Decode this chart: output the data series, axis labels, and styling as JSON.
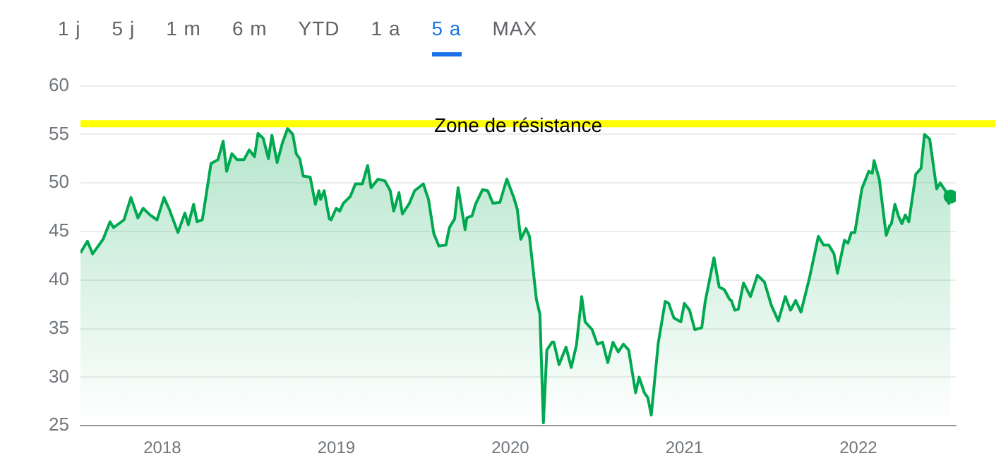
{
  "chart_data": {
    "type": "area",
    "annotations": [
      "1 j",
      "5 j",
      "1 m",
      "6 m",
      "YTD",
      "1 a",
      "5 a",
      "MAX"
    ],
    "xlim": [
      2017.53,
      2022.56
    ],
    "xticks": [
      2018,
      2019,
      2020,
      2021,
      2022
    ],
    "ylim": [
      25,
      60
    ],
    "yticks": [
      25,
      30,
      35,
      40,
      45,
      50,
      55,
      60
    ],
    "grid": "y",
    "legend": false,
    "ref_lines": [
      {
        "axis": "y",
        "value": 56.1,
        "label": "Zone de résistance",
        "color": "#ffff00"
      }
    ],
    "series": [
      {
        "color": "#00a84f",
        "x": [
          2017.53,
          2017.57,
          2017.6,
          2017.66,
          2017.7,
          2017.72,
          2017.78,
          2017.82,
          2017.86,
          2017.89,
          2017.93,
          2017.97,
          2018.01,
          2018.04,
          2018.09,
          2018.13,
          2018.15,
          2018.18,
          2018.2,
          2018.23,
          2018.25,
          2018.28,
          2018.32,
          2018.35,
          2018.37,
          2018.4,
          2018.43,
          2018.47,
          2018.5,
          2018.53,
          2018.55,
          2018.58,
          2018.61,
          2018.63,
          2018.66,
          2018.69,
          2018.72,
          2018.75,
          2018.77,
          2018.79,
          2018.81,
          2018.85,
          2018.88,
          2018.9,
          2018.91,
          2018.93,
          2018.96,
          2018.97,
          2019.0,
          2019.02,
          2019.04,
          2019.08,
          2019.11,
          2019.15,
          2019.18,
          2019.2,
          2019.24,
          2019.28,
          2019.31,
          2019.33,
          2019.36,
          2019.38,
          2019.42,
          2019.45,
          2019.5,
          2019.53,
          2019.56,
          2019.59,
          2019.63,
          2019.65,
          2019.68,
          2019.7,
          2019.74,
          2019.75,
          2019.78,
          2019.8,
          2019.84,
          2019.87,
          2019.9,
          2019.94,
          2019.96,
          2019.98,
          2020.02,
          2020.04,
          2020.06,
          2020.09,
          2020.11,
          2020.15,
          2020.17,
          2020.19,
          2020.21,
          2020.24,
          2020.25,
          2020.28,
          2020.32,
          2020.35,
          2020.38,
          2020.41,
          2020.43,
          2020.47,
          2020.5,
          2020.53,
          2020.56,
          2020.59,
          2020.62,
          2020.65,
          2020.68,
          2020.72,
          2020.74,
          2020.77,
          2020.79,
          2020.81,
          2020.85,
          2020.89,
          2020.91,
          2020.94,
          2020.98,
          2021.0,
          2021.03,
          2021.06,
          2021.1,
          2021.12,
          2021.17,
          2021.2,
          2021.23,
          2021.26,
          2021.27,
          2021.29,
          2021.31,
          2021.34,
          2021.38,
          2021.42,
          2021.46,
          2021.5,
          2021.54,
          2021.58,
          2021.61,
          2021.64,
          2021.67,
          2021.72,
          2021.77,
          2021.8,
          2021.83,
          2021.86,
          2021.88,
          2021.92,
          2021.94,
          2021.96,
          2021.98,
          2022.02,
          2022.06,
          2022.08,
          2022.09,
          2022.12,
          2022.16,
          2022.18,
          2022.19,
          2022.21,
          2022.23,
          2022.25,
          2022.27,
          2022.29,
          2022.33,
          2022.36,
          2022.38,
          2022.41,
          2022.45,
          2022.47,
          2022.5,
          2022.52,
          2022.53
        ],
        "values": [
          42.8,
          44.0,
          42.7,
          44.2,
          46.0,
          45.4,
          46.2,
          48.5,
          46.4,
          47.4,
          46.7,
          46.2,
          48.5,
          47.3,
          44.9,
          46.9,
          45.7,
          47.8,
          46.0,
          46.2,
          48.5,
          52.0,
          52.4,
          54.3,
          51.2,
          53.0,
          52.4,
          52.4,
          53.4,
          52.7,
          55.1,
          54.6,
          52.5,
          54.9,
          52.1,
          54.1,
          55.6,
          55.0,
          53.0,
          52.5,
          50.7,
          50.6,
          47.8,
          49.2,
          48.3,
          49.2,
          46.3,
          46.2,
          47.4,
          47.1,
          47.9,
          48.6,
          49.9,
          49.9,
          51.8,
          49.5,
          50.4,
          50.2,
          49.2,
          47.1,
          49.0,
          46.8,
          47.9,
          49.2,
          49.9,
          48.3,
          44.8,
          43.5,
          43.6,
          45.4,
          46.3,
          49.5,
          45.2,
          46.4,
          46.6,
          47.8,
          49.3,
          49.2,
          47.9,
          48.0,
          49.2,
          50.4,
          48.5,
          47.3,
          44.2,
          45.3,
          44.5,
          38.0,
          36.5,
          25.3,
          32.8,
          33.6,
          33.6,
          31.3,
          33.1,
          31.0,
          33.3,
          38.3,
          35.7,
          34.9,
          33.4,
          33.6,
          31.5,
          33.6,
          32.6,
          33.4,
          32.8,
          28.4,
          30.0,
          28.4,
          27.9,
          26.1,
          33.5,
          37.8,
          37.6,
          36.1,
          35.7,
          37.6,
          36.9,
          34.9,
          35.1,
          37.8,
          42.3,
          39.3,
          39.0,
          38.0,
          37.9,
          36.9,
          37.0,
          39.7,
          38.3,
          40.5,
          39.8,
          37.4,
          35.8,
          38.3,
          36.9,
          37.9,
          36.7,
          40.3,
          44.5,
          43.6,
          43.6,
          42.7,
          40.7,
          44.1,
          43.8,
          44.9,
          44.9,
          49.4,
          51.2,
          51.0,
          52.3,
          50.4,
          44.6,
          45.6,
          45.8,
          47.8,
          46.6,
          45.8,
          46.7,
          46.0,
          50.9,
          51.5,
          55.0,
          54.5,
          49.4,
          50.0,
          49.2,
          47.9,
          48.6
        ]
      }
    ]
  }
}
